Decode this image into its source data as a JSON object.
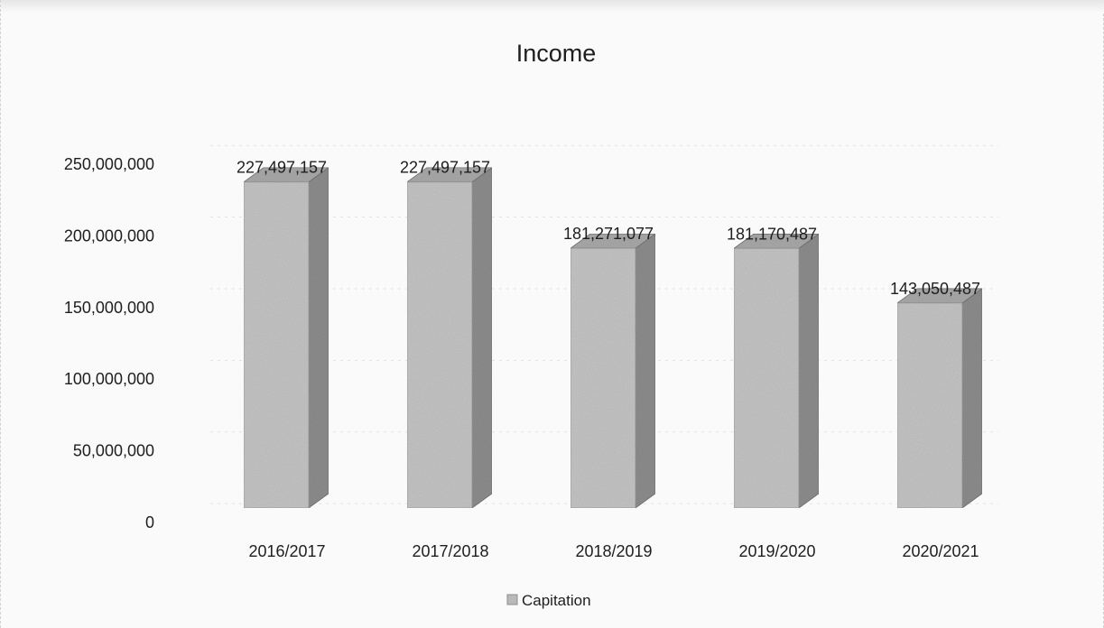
{
  "chart_data": {
    "type": "bar",
    "title": "Income",
    "categories": [
      "2016/2017",
      "2017/2018",
      "2018/2019",
      "2019/2020",
      "2020/2021"
    ],
    "series": [
      {
        "name": "Capitation",
        "values": [
          227497157,
          227497157,
          181271077,
          181170487,
          143050487
        ]
      }
    ],
    "data_labels": [
      "227,497,157",
      "227,497,157",
      "181,271,077",
      "181,170,487",
      "143,050,487"
    ],
    "y_ticks": [
      "0",
      "50,000,000",
      "100,000,000",
      "150,000,000",
      "200,000,000",
      "250,000,000"
    ],
    "ylim": [
      0,
      250000000
    ],
    "xlabel": "",
    "ylabel": "",
    "grid": true,
    "legend_position": "bottom",
    "style": "3d-column",
    "colors": {
      "bar_front": "#c4c4c4",
      "bar_side": "#8d8d8d",
      "bar_top": "#a9a9a9",
      "grid": "#e2e2e2",
      "text": "#1e1e1e"
    }
  }
}
